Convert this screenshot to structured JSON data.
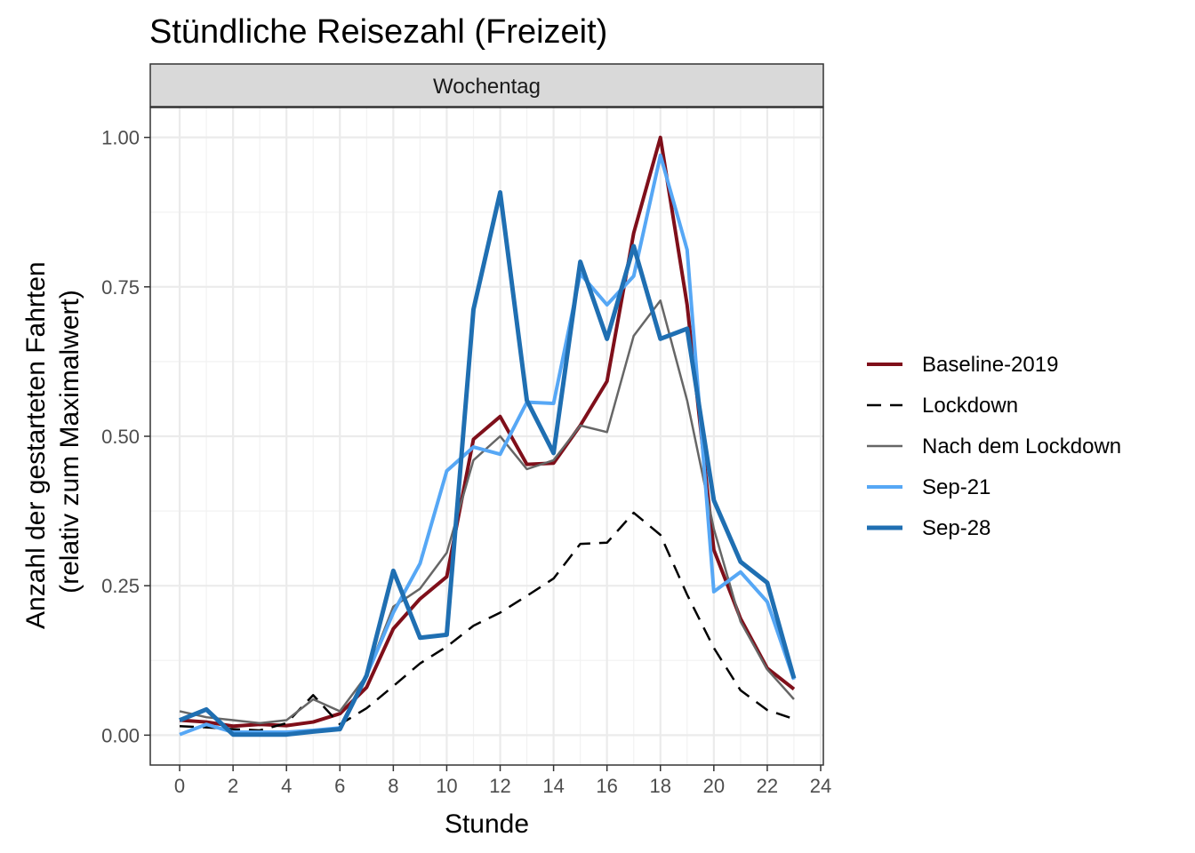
{
  "chart_data": {
    "type": "line",
    "title": "Stündliche Reisezahl (Freizeit)",
    "facet": "Wochentag",
    "xlabel": "Stunde",
    "ylabel_line1": "Anzahl der gestarteten Fahrten",
    "ylabel_line2": "(relativ zum Maximalwert)",
    "xlim": [
      -1.1,
      24.1
    ],
    "ylim": [
      -0.05,
      1.05
    ],
    "x_ticks": [
      0,
      2,
      4,
      6,
      8,
      10,
      12,
      14,
      16,
      18,
      20,
      22,
      24
    ],
    "x_tick_labels": [
      "0",
      "2",
      "4",
      "6",
      "8",
      "10",
      "12",
      "14",
      "16",
      "18",
      "20",
      "22",
      "24"
    ],
    "y_ticks": [
      0,
      0.25,
      0.5,
      0.75,
      1.0
    ],
    "y_tick_labels": [
      "0.00",
      "0.25",
      "0.50",
      "0.75",
      "1.00"
    ],
    "grid": true,
    "legend_position": "right",
    "x": [
      0,
      1,
      2,
      3,
      4,
      5,
      6,
      7,
      8,
      9,
      10,
      11,
      12,
      13,
      14,
      15,
      16,
      17,
      18,
      19,
      20,
      21,
      22,
      23
    ],
    "series": [
      {
        "name": "Baseline-2019",
        "color": "#7f0f1a",
        "dash": "solid",
        "width": 4,
        "values": [
          0.025,
          0.022,
          0.015,
          0.018,
          0.016,
          0.022,
          0.036,
          0.08,
          0.178,
          0.228,
          0.265,
          0.495,
          0.533,
          0.453,
          0.455,
          0.518,
          0.592,
          0.84,
          1.0,
          0.72,
          0.31,
          0.195,
          0.112,
          0.077
        ]
      },
      {
        "name": "Lockdown",
        "color": "#000000",
        "dash": "dashed",
        "width": 2.5,
        "values": [
          0.015,
          0.013,
          0.01,
          0.008,
          0.02,
          0.067,
          0.018,
          0.045,
          0.082,
          0.12,
          0.148,
          0.183,
          0.205,
          0.233,
          0.262,
          0.32,
          0.322,
          0.372,
          0.335,
          0.235,
          0.146,
          0.075,
          0.042,
          0.027
        ]
      },
      {
        "name": "Nach dem Lockdown",
        "color": "#666666",
        "dash": "solid",
        "width": 2.5,
        "values": [
          0.04,
          0.03,
          0.025,
          0.02,
          0.025,
          0.06,
          0.04,
          0.1,
          0.215,
          0.245,
          0.305,
          0.46,
          0.5,
          0.445,
          0.46,
          0.518,
          0.507,
          0.668,
          0.727,
          0.56,
          0.345,
          0.19,
          0.11,
          0.06
        ]
      },
      {
        "name": "Sep-21",
        "color": "#56a7f5",
        "dash": "solid",
        "width": 4,
        "values": [
          0.001,
          0.018,
          0.005,
          0.005,
          0.005,
          0.008,
          0.012,
          0.1,
          0.205,
          0.287,
          0.442,
          0.482,
          0.47,
          0.557,
          0.555,
          0.772,
          0.72,
          0.768,
          0.97,
          0.812,
          0.24,
          0.273,
          0.223,
          0.093
        ]
      },
      {
        "name": "Sep-28",
        "color": "#1f6fb2",
        "dash": "solid",
        "width": 5,
        "values": [
          0.025,
          0.043,
          0.001,
          0.001,
          0.001,
          0.006,
          0.01,
          0.1,
          0.275,
          0.163,
          0.168,
          0.712,
          0.908,
          0.56,
          0.472,
          0.792,
          0.663,
          0.818,
          0.663,
          0.68,
          0.393,
          0.29,
          0.255,
          0.095
        ]
      }
    ]
  }
}
